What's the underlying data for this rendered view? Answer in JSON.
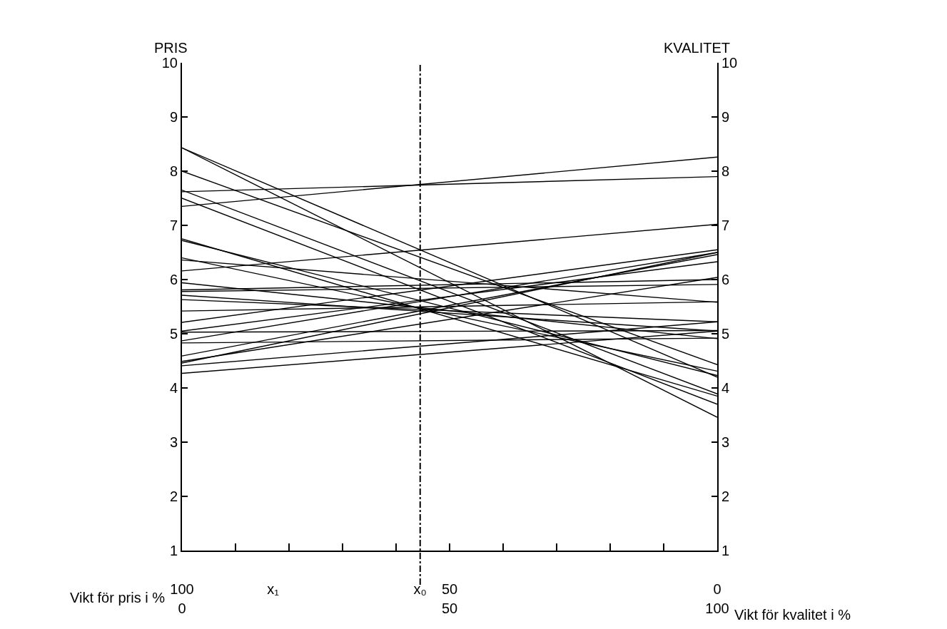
{
  "chart_data": {
    "type": "line",
    "ylabel": "PRIS",
    "y2label": "KVALITET",
    "xlabel": "Vikt för kvalitet i %",
    "x2label": "Vikt för pris i %",
    "x": [
      0,
      100
    ],
    "color": "#000000",
    "marker": "none",
    "line_style": "solid",
    "xlim": [
      0,
      100
    ],
    "xticks": [
      0,
      {
        "value": 10,
        "label": null
      },
      {
        "value": 20,
        "label": null
      },
      {
        "value": 30,
        "label": null
      },
      {
        "value": 40,
        "label": null
      },
      50,
      {
        "value": 60,
        "label": null
      },
      {
        "value": 70,
        "label": null
      },
      {
        "value": 80,
        "label": null
      },
      {
        "value": 90,
        "label": null
      },
      100
    ],
    "x2lim": [
      100,
      0
    ],
    "x2ticks": [
      100,
      {
        "value": 83,
        "label": "x₁"
      },
      {
        "value": 55.5,
        "label": "x₀"
      },
      50,
      0
    ],
    "ylim": [
      1,
      10
    ],
    "yticks": [
      1,
      2,
      3,
      4,
      5,
      6,
      7,
      8,
      9,
      10
    ],
    "y2lim": [
      1,
      10
    ],
    "y2ticks": [
      1,
      2,
      3,
      4,
      5,
      6,
      7,
      8,
      9,
      10
    ],
    "ref_lines": [
      {
        "axis": "x",
        "value": 44.5,
        "line_style": "dashdot"
      }
    ],
    "series": [
      {
        "values": [
          8.43,
          3.46
        ]
      },
      {
        "values": [
          8.43,
          4.2
        ]
      },
      {
        "values": [
          8.0,
          4.43
        ]
      },
      {
        "values": [
          7.65,
          3.89
        ]
      },
      {
        "values": [
          7.5,
          3.7
        ]
      },
      {
        "values": [
          6.75,
          3.85
        ]
      },
      {
        "values": [
          6.72,
          4.23
        ]
      },
      {
        "values": [
          6.4,
          4.31
        ]
      },
      {
        "values": [
          7.62,
          7.9
        ]
      },
      {
        "values": [
          7.35,
          8.26
        ]
      },
      {
        "values": [
          6.16,
          7.02
        ]
      },
      {
        "values": [
          6.36,
          5.58
        ]
      },
      {
        "values": [
          5.94,
          4.91
        ]
      },
      {
        "values": [
          5.81,
          6.0
        ]
      },
      {
        "values": [
          5.78,
          5.91
        ]
      },
      {
        "values": [
          5.71,
          5.05
        ]
      },
      {
        "values": [
          5.63,
          5.22
        ]
      },
      {
        "values": [
          5.42,
          5.59
        ]
      },
      {
        "values": [
          5.21,
          6.55
        ]
      },
      {
        "values": [
          5.05,
          6.33
        ]
      },
      {
        "values": [
          5.03,
          5.06
        ]
      },
      {
        "values": [
          4.87,
          6.5
        ]
      },
      {
        "values": [
          4.83,
          4.92
        ]
      },
      {
        "values": [
          4.59,
          6.46
        ]
      },
      {
        "values": [
          4.49,
          6.04
        ]
      },
      {
        "values": [
          4.46,
          6.5
        ]
      },
      {
        "values": [
          4.41,
          5.22
        ]
      },
      {
        "values": [
          4.27,
          5.05
        ]
      }
    ]
  }
}
